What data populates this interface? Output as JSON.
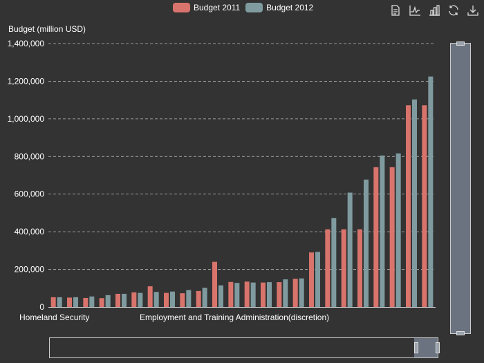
{
  "legend": [
    {
      "label": "Budget 2011",
      "color": "#d9746c"
    },
    {
      "label": "Budget 2012",
      "color": "#7f9ba0"
    }
  ],
  "toolbox": [
    "data-view-icon",
    "line-chart-icon",
    "bar-chart-icon",
    "refresh-icon",
    "download-icon"
  ],
  "chart_data": {
    "type": "bar",
    "title": "",
    "ylabel": "Budget (million USD)",
    "ylim": [
      0,
      1400000
    ],
    "yticks": [
      "0",
      "200,000",
      "400,000",
      "600,000",
      "800,000",
      "1,000,000",
      "1,200,000",
      "1,400,000"
    ],
    "grid": "horizontal dashed",
    "legend_position": "top",
    "x_tick_labels": [
      "Homeland Security",
      "Employment and Training Administration(discretion)"
    ],
    "series": [
      {
        "name": "Budget 2011",
        "color": "#d9746c",
        "values": [
          52000,
          50000,
          48000,
          47000,
          70000,
          78000,
          110000,
          75000,
          73000,
          85000,
          240000,
          133000,
          135000,
          130000,
          132000,
          150000,
          290000,
          413000,
          413000,
          413000,
          743000,
          743000,
          1072000,
          1072000
        ]
      },
      {
        "name": "Budget 2012",
        "color": "#7f9ba0",
        "values": [
          52000,
          52000,
          56000,
          63000,
          70000,
          75000,
          80000,
          82000,
          90000,
          102000,
          115000,
          128000,
          130000,
          132000,
          147000,
          152000,
          293000,
          473000,
          608000,
          677000,
          805000,
          816000,
          1103000,
          1225000
        ]
      }
    ]
  },
  "datazoom": {
    "horizontal_range_percent": [
      94,
      100
    ],
    "vertical_range_percent": [
      0,
      100
    ]
  }
}
